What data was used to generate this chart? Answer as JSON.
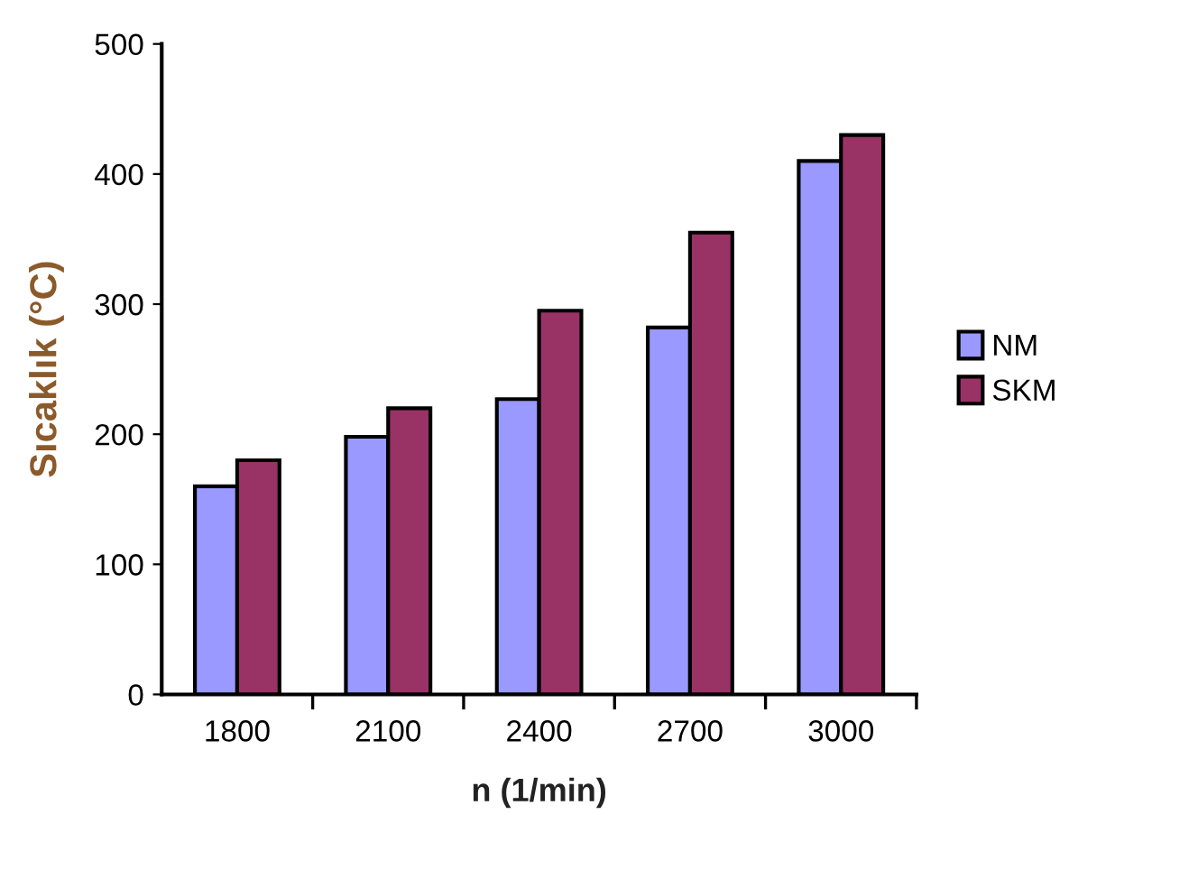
{
  "chart_data": {
    "type": "bar",
    "xlabel": "n (1/min)",
    "ylabel": "Sıcaklık (°C)",
    "categories": [
      "1800",
      "2100",
      "2400",
      "2700",
      "3000"
    ],
    "series": [
      {
        "name": "NM",
        "color": "#9999ff",
        "values": [
          160,
          198,
          227,
          282,
          410
        ]
      },
      {
        "name": "SKM",
        "color": "#993366",
        "values": [
          180,
          220,
          295,
          355,
          430
        ]
      }
    ],
    "ylim": [
      0,
      500
    ],
    "yticks": [
      0,
      100,
      200,
      300,
      400,
      500
    ],
    "grid": false,
    "legend": "right"
  }
}
